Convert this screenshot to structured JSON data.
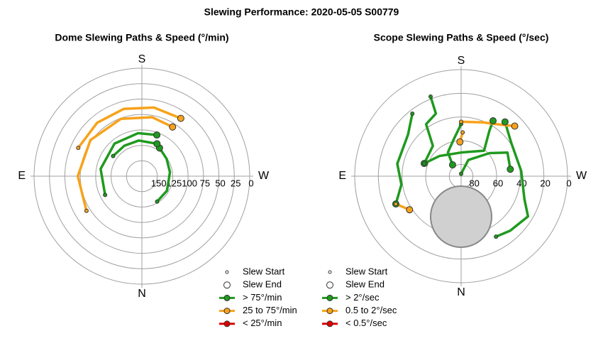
{
  "title": "Slewing Performance: 2020-05-05 S00779",
  "chart_data": [
    {
      "type": "polar",
      "title": "Dome Slewing Paths & Speed (°/min)",
      "compass": [
        "S",
        "W",
        "N",
        "E"
      ],
      "rlim": [
        175,
        0
      ],
      "rticks": [
        150,
        125,
        100,
        75,
        50,
        25,
        0
      ],
      "legend": [
        {
          "name": "Slew Start"
        },
        {
          "name": "Slew End"
        },
        {
          "name": "> 75°/min",
          "color": "#1f9a1f"
        },
        {
          "name": "25 to 75°/min",
          "color": "#f7a21b"
        },
        {
          "name": "< 25°/min",
          "color": "#e00000"
        }
      ],
      "paths": [
        {
          "color": "#f7a21b",
          "theta": [
            114,
            140,
            165,
            190,
            214
          ],
          "r": [
            62,
            62,
            62,
            62,
            62
          ]
        },
        {
          "color": "#f7a21b",
          "theta": [
            58,
            90,
            125,
            160,
            190,
            212
          ],
          "r": [
            69,
            71,
            73,
            76,
            78,
            81
          ]
        },
        {
          "color": "#1f9a1f",
          "theta": [
            63,
            100,
            140,
            175,
            200
          ],
          "r": [
            108,
            107,
            106,
            105,
            104
          ]
        },
        {
          "color": "#1f9a1f",
          "theta": [
            329,
            300,
            262,
            235,
            212
          ],
          "r": [
            127,
            128,
            129,
            126,
            121
          ]
        },
        {
          "color": "#1f9a1f",
          "theta": [
            125,
            150,
            175,
            205
          ],
          "r": [
            118,
            118,
            117,
            117
          ]
        }
      ]
    },
    {
      "type": "polar",
      "title": "Scope Slewing Paths & Speed (°/sec)",
      "compass": [
        "S",
        "W",
        "N",
        "E"
      ],
      "rlim": [
        90,
        0
      ],
      "rticks": [
        80,
        60,
        40,
        20,
        0
      ],
      "legend": [
        {
          "name": "Slew Start"
        },
        {
          "name": "Slew End"
        },
        {
          "name": "> 2°/sec",
          "color": "#1f9a1f"
        },
        {
          "name": "0.5 to 2°/sec",
          "color": "#f7a21b"
        },
        {
          "name": "< 0.5°/sec",
          "color": "#e00000"
        }
      ],
      "paths": [
        {
          "color": "#1f9a1f",
          "theta": [
            159,
            158,
            146,
            137,
            109
          ],
          "r": [
            18,
            33,
            37,
            55,
            57
          ]
        },
        {
          "color": "#1f9a1f",
          "theta": [
            142,
            128,
            101,
            82,
            67
          ],
          "r": [
            23,
            33,
            35,
            39,
            30
          ]
        },
        {
          "color": "#1f9a1f",
          "theta": [
            180,
            204,
            231,
            243,
            262
          ],
          "r": [
            88,
            75,
            59,
            46,
            48
          ]
        },
        {
          "color": "#1f9a1f",
          "theta": [
            330,
            318,
            301,
            290,
            265,
            236,
            219
          ],
          "r": [
            31,
            28,
            24,
            33,
            39,
            39,
            31
          ]
        },
        {
          "color": "#1f9a1f",
          "theta": [
            180,
            169,
            151,
            143
          ],
          "r": [
            46,
            58,
            67,
            78
          ]
        },
        {
          "color": "#1f9a1f",
          "theta": [
            109,
            133,
            180,
            222,
            212,
            210
          ],
          "r": [
            57,
            65,
            70,
            61,
            45,
            36
          ]
        },
        {
          "color": "#f7a21b",
          "theta": [
            180,
            202,
            214,
            227
          ],
          "r": [
            44,
            41,
            37,
            28
          ]
        },
        {
          "color": "#f7a21b",
          "theta": [
            67,
            57
          ],
          "r": [
            30,
            38
          ]
        },
        {
          "color": "#f7a21b",
          "theta": [
            182,
            178
          ],
          "r": [
            53,
            61
          ]
        }
      ]
    }
  ]
}
